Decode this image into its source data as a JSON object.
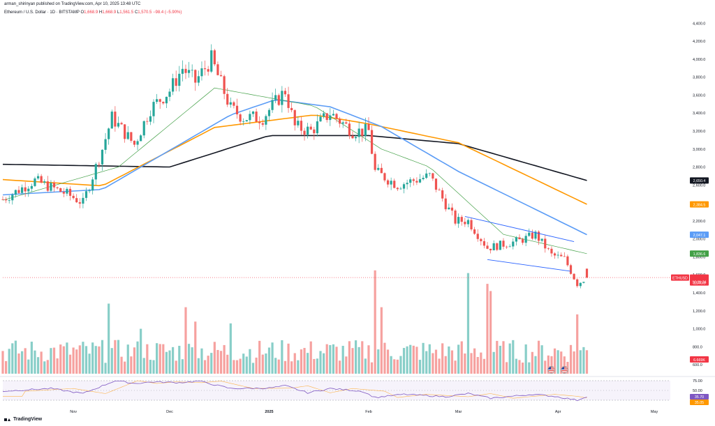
{
  "header": {
    "published": "arman_shirinyan published on TradingView.com, Apr 10, 2025 13:48 UTC",
    "symbol": "Ethereum / U.S. Dollar · 1D · BITSTAMP",
    "ohlc": [
      {
        "label": "O",
        "value": "1,668.9"
      },
      {
        "label": "H",
        "value": "1,668.9"
      },
      {
        "label": "L",
        "value": "1,561.5"
      },
      {
        "label": "C",
        "value": "1,570.5"
      }
    ],
    "change": "−98.4 (−5.90%)"
  },
  "footer": {
    "brand": "TradingView"
  },
  "colors": {
    "up": "#26a69a",
    "down": "#ef5350",
    "ma_black": "#131722",
    "ma_orange": "#ff9800",
    "ma_blue": "#5b9cf6",
    "ma_green": "#43a047",
    "rsi": "#7e57c2",
    "trend": "#2962ff"
  },
  "chart_data": {
    "type": "candlestick",
    "title": "Ethereum / U.S. Dollar · 1D · BITSTAMP",
    "price_axis": {
      "ticks": [
        "4,400.0",
        "4,200.0",
        "4,000.0",
        "3,800.0",
        "3,600.0",
        "3,400.0",
        "3,200.0",
        "3,000.0",
        "2,800.0",
        "2,600.0",
        "2,400.0",
        "2,200.0",
        "2,000.0",
        "1,800.0",
        "1,600.0",
        "1,400.0",
        "1,200.0",
        "1,000.0",
        "800.0",
        "600.0"
      ],
      "range": [
        500,
        4480
      ]
    },
    "time_axis": {
      "labels": [
        "Nov",
        "Dec",
        "2025",
        "Feb",
        "Mar",
        "Apr",
        "May"
      ],
      "range": [
        "2024-10-10",
        "2025-05-06"
      ]
    },
    "price_labels": [
      {
        "text": "2,650.4",
        "price": 2650,
        "color": "#131722"
      },
      {
        "text": "2,384.5",
        "price": 2384,
        "color": "#ff9800"
      },
      {
        "text": "2,047.1",
        "price": 2047,
        "color": "#5b9cf6"
      },
      {
        "text": "1,836.6",
        "price": 1836,
        "color": "#43a047"
      },
      {
        "text": "ETHUSD",
        "price": 1570,
        "color": "#f23645"
      },
      {
        "text": "1,570.5",
        "price": 1570,
        "color": "#f23645"
      },
      {
        "text": "10:11:34",
        "price": 1532,
        "color": "#f23645"
      },
      {
        "text": "6.669K",
        "price": 640,
        "color": "#f23645"
      }
    ],
    "price_anchors": [
      [
        "2024-10-10",
        2440
      ],
      [
        "2024-10-20",
        2650
      ],
      [
        "2024-10-30",
        2500
      ],
      [
        "2024-11-04",
        2400
      ],
      [
        "2024-11-10",
        3000
      ],
      [
        "2024-11-13",
        3350
      ],
      [
        "2024-11-20",
        3050
      ],
      [
        "2024-11-25",
        3450
      ],
      [
        "2024-12-01",
        3650
      ],
      [
        "2024-12-05",
        3900
      ],
      [
        "2024-12-09",
        3750
      ],
      [
        "2024-12-14",
        4000
      ],
      [
        "2024-12-20",
        3450
      ],
      [
        "2024-12-24",
        3350
      ],
      [
        "2024-12-30",
        3350
      ],
      [
        "2025-01-06",
        3650
      ],
      [
        "2025-01-09",
        3250
      ],
      [
        "2025-01-14",
        3200
      ],
      [
        "2025-01-20",
        3400
      ],
      [
        "2025-01-27",
        3200
      ],
      [
        "2025-02-01",
        3200
      ],
      [
        "2025-02-03",
        2750
      ],
      [
        "2025-02-10",
        2600
      ],
      [
        "2025-02-20",
        2700
      ],
      [
        "2025-02-24",
        2450
      ],
      [
        "2025-02-28",
        2200
      ],
      [
        "2025-03-04",
        2200
      ],
      [
        "2025-03-10",
        1900
      ],
      [
        "2025-03-20",
        1980
      ],
      [
        "2025-03-25",
        2050
      ],
      [
        "2025-03-30",
        1820
      ],
      [
        "2025-04-03",
        1780
      ],
      [
        "2025-04-07",
        1500
      ],
      [
        "2025-04-10",
        1570
      ]
    ],
    "moving_averages": [
      {
        "period": "200",
        "color": "#131722",
        "points": [
          [
            "2024-10-10",
            2830
          ],
          [
            "2024-12-01",
            2800
          ],
          [
            "2025-01-01",
            3150
          ],
          [
            "2025-02-01",
            3150
          ],
          [
            "2025-03-01",
            3060
          ],
          [
            "2025-04-10",
            2650
          ]
        ]
      },
      {
        "period": "100",
        "color": "#ff9800",
        "points": [
          [
            "2024-10-10",
            2660
          ],
          [
            "2024-11-10",
            2590
          ],
          [
            "2024-12-15",
            3240
          ],
          [
            "2025-01-15",
            3380
          ],
          [
            "2025-02-01",
            3280
          ],
          [
            "2025-03-01",
            3070
          ],
          [
            "2025-04-10",
            2385
          ]
        ]
      },
      {
        "period": "50",
        "color": "#5b9cf6",
        "points": [
          [
            "2024-10-10",
            2490
          ],
          [
            "2024-11-10",
            2550
          ],
          [
            "2024-12-20",
            3380
          ],
          [
            "2025-01-03",
            3550
          ],
          [
            "2025-01-20",
            3470
          ],
          [
            "2025-02-05",
            3250
          ],
          [
            "2025-03-01",
            2750
          ],
          [
            "2025-04-10",
            2047
          ]
        ]
      },
      {
        "period": "20",
        "color": "#43a047",
        "points": [
          [
            "2024-10-10",
            2430
          ],
          [
            "2024-11-15",
            2800
          ],
          [
            "2024-12-15",
            3680
          ],
          [
            "2025-01-15",
            3480
          ],
          [
            "2025-02-05",
            3000
          ],
          [
            "2025-02-20",
            2800
          ],
          [
            "2025-03-15",
            2050
          ],
          [
            "2025-04-10",
            1836
          ]
        ]
      }
    ],
    "trendlines": [
      {
        "from": [
          "2025-03-03",
          2250
        ],
        "to": [
          "2025-04-06",
          1970
        ]
      },
      {
        "from": [
          "2025-03-10",
          1770
        ],
        "to": [
          "2025-04-05",
          1640
        ]
      }
    ],
    "volume": {
      "color_up": "#26a69a",
      "color_down": "#ef5350",
      "peaks": [
        [
          "2024-11-12",
          1280
        ],
        [
          "2024-11-22",
          1000
        ],
        [
          "2024-12-06",
          1240
        ],
        [
          "2024-12-09",
          1080
        ],
        [
          "2024-12-20",
          1060
        ],
        [
          "2025-02-03",
          1650
        ],
        [
          "2025-02-05",
          1240
        ],
        [
          "2025-03-04",
          1620
        ],
        [
          "2025-03-10",
          1500
        ],
        [
          "2025-03-11",
          1420
        ],
        [
          "2025-04-07",
          1160
        ]
      ]
    },
    "rsi": {
      "axis_ticks": [
        "75.00",
        "50.00"
      ],
      "labels": [
        {
          "text": "35.70",
          "color": "#7e57c2"
        },
        {
          "text": "35.05",
          "color": "#ff9800"
        }
      ],
      "points": [
        [
          "2024-10-10",
          48
        ],
        [
          "2024-10-25",
          55
        ],
        [
          "2024-11-04",
          42
        ],
        [
          "2024-11-14",
          75
        ],
        [
          "2024-11-20",
          68
        ],
        [
          "2024-11-26",
          72
        ],
        [
          "2024-12-04",
          70
        ],
        [
          "2024-12-10",
          74
        ],
        [
          "2024-12-20",
          55
        ],
        [
          "2025-01-01",
          56
        ],
        [
          "2025-01-06",
          62
        ],
        [
          "2025-01-13",
          44
        ],
        [
          "2025-01-20",
          55
        ],
        [
          "2025-01-30",
          48
        ],
        [
          "2025-02-03",
          32
        ],
        [
          "2025-02-12",
          40
        ],
        [
          "2025-02-25",
          34
        ],
        [
          "2025-03-04",
          42
        ],
        [
          "2025-03-11",
          30
        ],
        [
          "2025-03-24",
          40
        ],
        [
          "2025-03-31",
          35
        ],
        [
          "2025-04-07",
          25
        ],
        [
          "2025-04-10",
          35
        ]
      ]
    }
  }
}
